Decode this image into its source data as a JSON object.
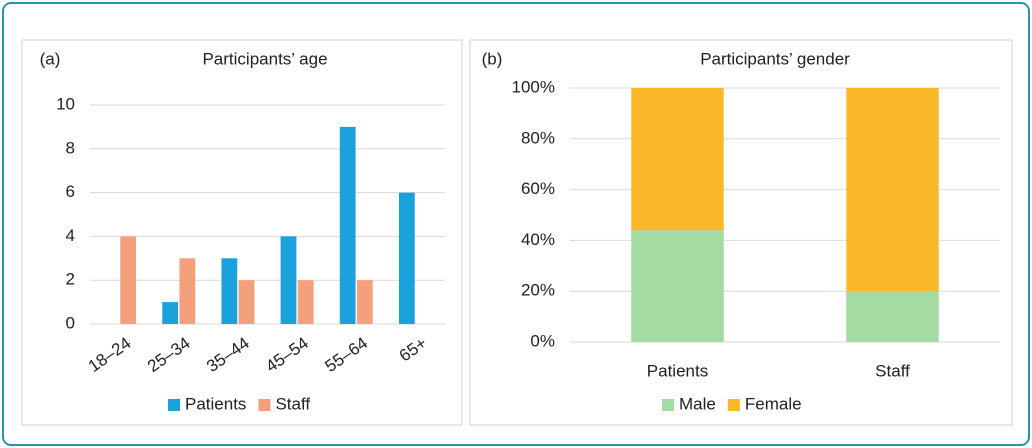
{
  "chart_data": [
    {
      "type": "bar",
      "panel_label": "(a)",
      "title": "Participants’ age",
      "categories": [
        "18–24",
        "25–34",
        "35–44",
        "45–54",
        "55–64",
        "65+"
      ],
      "series": [
        {
          "name": "Patients",
          "color": "#1ba1dc",
          "values": [
            0,
            1,
            3,
            4,
            9,
            6
          ]
        },
        {
          "name": "Staff",
          "color": "#f5a07c",
          "values": [
            4,
            3,
            2,
            2,
            2,
            0
          ]
        }
      ],
      "ylim": [
        0,
        10
      ],
      "yticks": [
        0,
        2,
        4,
        6,
        8,
        10
      ],
      "grid": true,
      "legend": "bottom"
    },
    {
      "type": "stacked_bar",
      "panel_label": "(b)",
      "title": "Participants’ gender",
      "categories": [
        "Patients",
        "Staff"
      ],
      "series": [
        {
          "name": "Male",
          "color": "#a3dba3",
          "values": [
            44,
            20
          ]
        },
        {
          "name": "Female",
          "color": "#fbb829",
          "values": [
            56,
            80
          ]
        }
      ],
      "ylim": [
        0,
        100
      ],
      "yticks": [
        {
          "value": 0,
          "label": "0%"
        },
        {
          "value": 20,
          "label": "20%"
        },
        {
          "value": 40,
          "label": "40%"
        },
        {
          "value": 60,
          "label": "60%"
        },
        {
          "value": 80,
          "label": "80%"
        },
        {
          "value": 100,
          "label": "100%"
        }
      ],
      "grid": true,
      "legend": "bottom"
    }
  ]
}
